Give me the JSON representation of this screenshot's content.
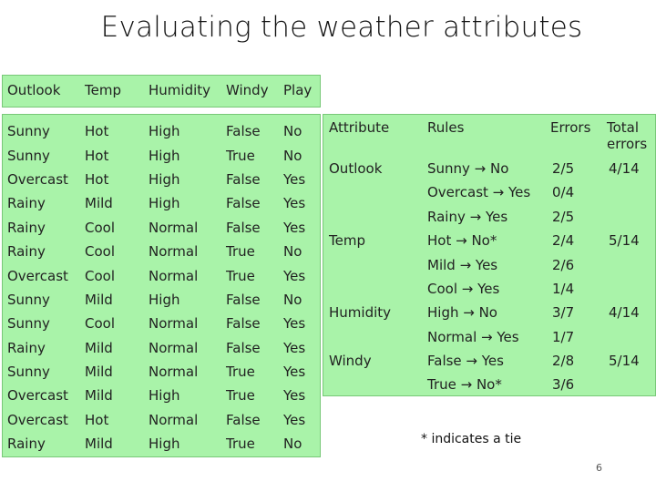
{
  "slide": {
    "title": "Evaluating the weather attributes",
    "footnote": "*  indicates a tie",
    "page_number": "6"
  },
  "weather_table": {
    "headers": [
      "Outlook",
      "Temp",
      "Humidity",
      "Windy",
      "Play"
    ],
    "rows": [
      [
        "Sunny",
        "Hot",
        "High",
        "False",
        "No"
      ],
      [
        "Sunny",
        "Hot",
        "High",
        "True",
        "No"
      ],
      [
        "Overcast",
        "Hot",
        "High",
        "False",
        "Yes"
      ],
      [
        "Rainy",
        "Mild",
        "High",
        "False",
        "Yes"
      ],
      [
        "Rainy",
        "Cool",
        "Normal",
        "False",
        "Yes"
      ],
      [
        "Rainy",
        "Cool",
        "Normal",
        "True",
        "No"
      ],
      [
        "Overcast",
        "Cool",
        "Normal",
        "True",
        "Yes"
      ],
      [
        "Sunny",
        "Mild",
        "High",
        "False",
        "No"
      ],
      [
        "Sunny",
        "Cool",
        "Normal",
        "False",
        "Yes"
      ],
      [
        "Rainy",
        "Mild",
        "Normal",
        "False",
        "Yes"
      ],
      [
        "Sunny",
        "Mild",
        "Normal",
        "True",
        "Yes"
      ],
      [
        "Overcast",
        "Mild",
        "High",
        "True",
        "Yes"
      ],
      [
        "Overcast",
        "Hot",
        "Normal",
        "False",
        "Yes"
      ],
      [
        "Rainy",
        "Mild",
        "High",
        "True",
        "No"
      ]
    ]
  },
  "rules_table": {
    "headers": [
      "Attribute",
      "Rules",
      "Errors",
      "Total errors"
    ],
    "rows": [
      {
        "attribute": "Outlook",
        "rule": "Sunny → No",
        "errors": "2/5",
        "total": "4/14"
      },
      {
        "attribute": "",
        "rule": "Overcast → Yes",
        "errors": "0/4",
        "total": ""
      },
      {
        "attribute": "",
        "rule": "Rainy → Yes",
        "errors": "2/5",
        "total": ""
      },
      {
        "attribute": "Temp",
        "rule": "Hot → No*",
        "errors": "2/4",
        "total": "5/14"
      },
      {
        "attribute": "",
        "rule": "Mild → Yes",
        "errors": "2/6",
        "total": ""
      },
      {
        "attribute": "",
        "rule": "Cool → Yes",
        "errors": "1/4",
        "total": ""
      },
      {
        "attribute": "Humidity",
        "rule": "High → No",
        "errors": "3/7",
        "total": "4/14"
      },
      {
        "attribute": "",
        "rule": "Normal → Yes",
        "errors": "1/7",
        "total": ""
      },
      {
        "attribute": "Windy",
        "rule": "False → Yes",
        "errors": "2/8",
        "total": "5/14"
      },
      {
        "attribute": "",
        "rule": "True → No*",
        "errors": "3/6",
        "total": ""
      }
    ]
  }
}
